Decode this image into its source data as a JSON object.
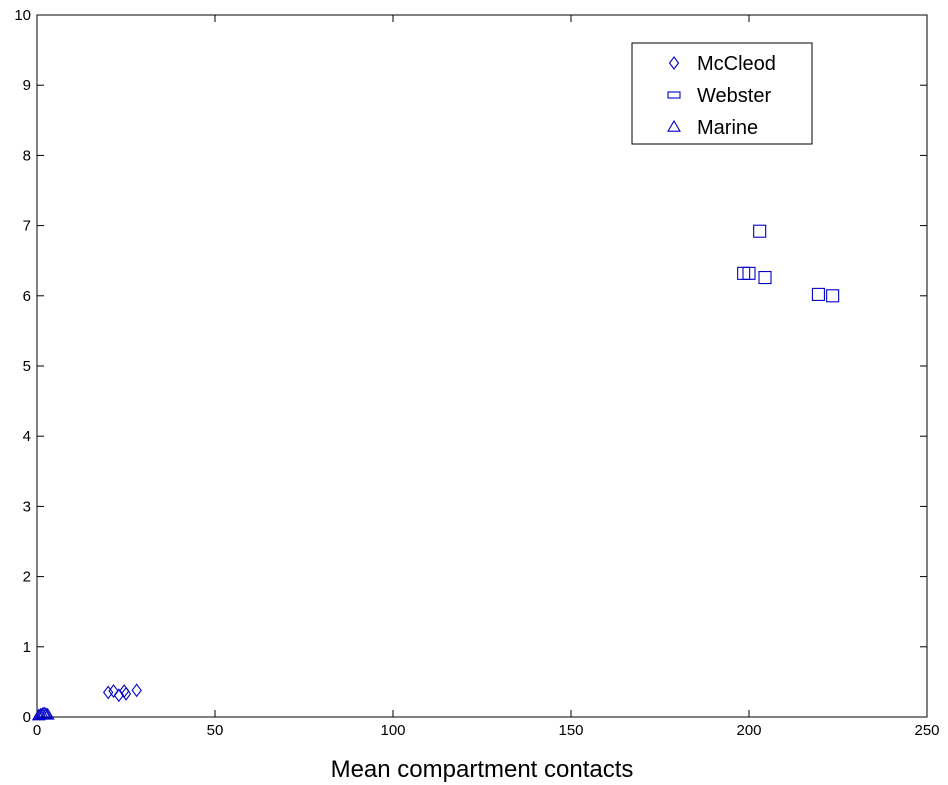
{
  "chart_data": {
    "type": "scatter",
    "title": "",
    "xlabel": "Mean compartment contacts",
    "ylabel": "",
    "xlim": [
      0,
      250
    ],
    "ylim": [
      0,
      10
    ],
    "x_ticks": [
      "0",
      "50",
      "100",
      "150",
      "200",
      "250"
    ],
    "y_ticks": [
      "0",
      "1",
      "2",
      "3",
      "4",
      "5",
      "6",
      "7",
      "8",
      "9",
      "10"
    ],
    "grid": false,
    "legend_position": "top-right",
    "marker_color": "#0000cc",
    "series": [
      {
        "name": "McCleod",
        "marker": "diamond",
        "points": [
          [
            20,
            0.35
          ],
          [
            21.5,
            0.37
          ],
          [
            23,
            0.31
          ],
          [
            24.5,
            0.37
          ],
          [
            25,
            0.33
          ],
          [
            28,
            0.38
          ]
        ]
      },
      {
        "name": "Webster",
        "marker": "square",
        "points": [
          [
            198.5,
            6.32
          ],
          [
            200,
            6.32
          ],
          [
            203,
            6.92
          ],
          [
            204.5,
            6.26
          ],
          [
            219.5,
            6.02
          ],
          [
            223.5,
            6.0
          ]
        ]
      },
      {
        "name": "Marine",
        "marker": "triangle",
        "points": [
          [
            0.5,
            0.02
          ],
          [
            1,
            0.03
          ],
          [
            1.5,
            0.04
          ],
          [
            2,
            0.05
          ],
          [
            2.5,
            0.04
          ],
          [
            3,
            0.03
          ]
        ]
      }
    ]
  }
}
